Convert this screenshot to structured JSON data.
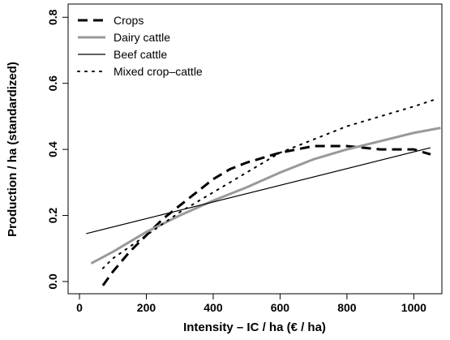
{
  "chart_data": {
    "type": "line",
    "xlabel": "Intensity – IC / ha (€ / ha)",
    "ylabel": "Production / ha (standardized)",
    "xlim": [
      -34,
      1084
    ],
    "ylim": [
      -0.037,
      0.84
    ],
    "xticks": [
      0,
      200,
      400,
      600,
      800,
      1000
    ],
    "yticks": [
      {
        "value": 0,
        "label": "0.0"
      },
      0.2,
      0.4,
      0.6,
      0.8
    ],
    "legend": "upper left",
    "series": [
      {
        "name": "Crops",
        "color": "#000000",
        "width": 3,
        "dash": "dashed",
        "x": [
          70,
          100,
          150,
          200,
          250,
          300,
          350,
          400,
          450,
          500,
          600,
          700,
          800,
          900,
          1000,
          1050
        ],
        "values": [
          -0.012,
          0.03,
          0.09,
          0.14,
          0.19,
          0.23,
          0.27,
          0.31,
          0.34,
          0.36,
          0.39,
          0.41,
          0.41,
          0.4,
          0.4,
          0.385
        ]
      },
      {
        "name": "Dairy cattle",
        "color": "#999999",
        "width": 3,
        "dash": "solid",
        "x": [
          35,
          100,
          200,
          300,
          400,
          500,
          600,
          700,
          800,
          900,
          1000,
          1080
        ],
        "values": [
          0.055,
          0.09,
          0.15,
          0.2,
          0.245,
          0.285,
          0.33,
          0.37,
          0.4,
          0.425,
          0.45,
          0.465
        ]
      },
      {
        "name": "Beef cattle",
        "color": "#000000",
        "width": 1.2,
        "dash": "solid",
        "x": [
          20,
          1050
        ],
        "values": [
          0.145,
          0.405
        ]
      },
      {
        "name": "Mixed crop–cattle",
        "color": "#000000",
        "width": 2,
        "dash": "dotted",
        "x": [
          70,
          100,
          200,
          300,
          400,
          500,
          600,
          700,
          800,
          900,
          1000,
          1060
        ],
        "values": [
          0.04,
          0.07,
          0.14,
          0.21,
          0.27,
          0.33,
          0.39,
          0.43,
          0.47,
          0.5,
          0.53,
          0.55
        ]
      }
    ]
  }
}
